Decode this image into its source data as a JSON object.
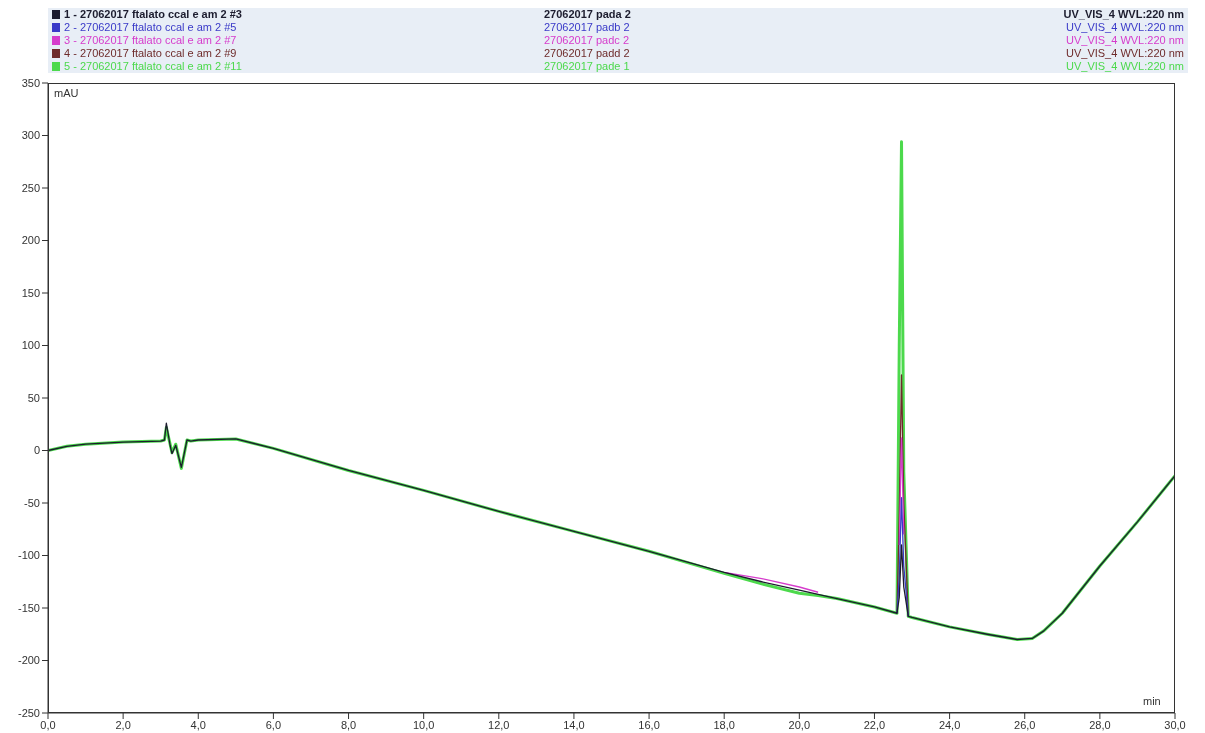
{
  "chart_data": {
    "type": "line",
    "xlabel": "min",
    "ylabel": "mAU",
    "x": [
      0,
      0.5,
      1,
      2,
      3,
      3.1,
      3.15,
      3.25,
      3.3,
      3.4,
      3.55,
      3.7,
      3.8,
      4,
      5,
      6,
      8,
      10,
      12,
      14,
      16,
      18,
      19,
      20,
      20.5,
      21,
      22,
      22.6,
      22.66,
      22.72,
      22.78,
      22.9,
      23,
      24,
      25,
      25.8,
      26.2,
      26.5,
      27,
      28,
      29,
      30
    ],
    "series": [
      {
        "name": "1 - 27062017 ftalato ccal e am 2 #3",
        "color": "#1c1c2e",
        "values": [
          0,
          4,
          6,
          8,
          9,
          10,
          26,
          5,
          -3,
          5,
          -16,
          10,
          9,
          10,
          11,
          2,
          -19,
          -38,
          -58,
          -77,
          -96,
          -116,
          -125,
          -133,
          -137,
          -141,
          -149,
          -155,
          -140,
          -90,
          -130,
          -158,
          -159,
          -168,
          -175,
          -180,
          -179,
          -172,
          -155,
          -110,
          -68,
          -24
        ]
      },
      {
        "name": "2 - 27062017 ftalato ccal e am 2 #5",
        "color": "#3a3ac8",
        "values": [
          null,
          null,
          null,
          null,
          null,
          null,
          null,
          null,
          null,
          null,
          null,
          null,
          null,
          null,
          null,
          null,
          null,
          null,
          null,
          null,
          null,
          null,
          null,
          null,
          null,
          null,
          null,
          -155,
          -120,
          -45,
          -110,
          -158,
          null,
          null,
          null,
          null,
          null,
          null,
          null,
          null,
          null,
          null
        ]
      },
      {
        "name": "3 - 27062017 ftalato ccal e am 2 #7",
        "color": "#d63ccc",
        "values": [
          null,
          null,
          null,
          null,
          null,
          null,
          null,
          null,
          null,
          null,
          null,
          null,
          null,
          null,
          null,
          null,
          null,
          null,
          null,
          null,
          null,
          -116,
          -122,
          -130,
          -135,
          null,
          null,
          null,
          -90,
          12,
          -80,
          null,
          null,
          null,
          null,
          null,
          null,
          null,
          null,
          null,
          null,
          null
        ]
      },
      {
        "name": "4 - 27062017 ftalato ccal e am 2 #9",
        "color": "#6e2b2b",
        "values": [
          null,
          null,
          null,
          null,
          null,
          null,
          null,
          null,
          null,
          null,
          null,
          null,
          null,
          null,
          null,
          null,
          null,
          null,
          null,
          null,
          null,
          null,
          null,
          null,
          null,
          null,
          null,
          -155,
          -60,
          72,
          -50,
          -158,
          null,
          null,
          null,
          null,
          null,
          null,
          null,
          null,
          null,
          null
        ]
      },
      {
        "name": "5 - 27062017 ftalato ccal e am 2 #11",
        "color": "#4cd94c",
        "values": [
          0,
          4,
          6,
          8,
          9,
          10,
          22,
          6,
          -2,
          6,
          -17,
          10,
          9,
          10,
          11,
          2,
          -19,
          -38,
          -58,
          -77,
          -96,
          -117,
          -127,
          -136,
          -138,
          -141,
          -149,
          -155,
          100,
          294,
          -20,
          -158,
          -159,
          -168,
          -175,
          -180,
          -179,
          -172,
          -155,
          -110,
          -68,
          -24
        ]
      }
    ],
    "annotations": [
      "27062017 pada 2",
      "UV_VIS_4 WVL:220 nm",
      "27062017 padb 2",
      "UV_VIS_4 WVL:220 nm",
      "27062017 padc 2",
      "UV_VIS_4 WVL:220 nm",
      "27062017 padd 2",
      "UV_VIS_4 WVL:220 nm",
      "27062017 pade 1",
      "UV_VIS_4 WVL:220 nm"
    ],
    "xlim": [
      0,
      30
    ],
    "xticks": [
      {
        "value": 0,
        "label": "0,0"
      },
      {
        "value": 2,
        "label": "2,0"
      },
      {
        "value": 4,
        "label": "4,0"
      },
      {
        "value": 6,
        "label": "6,0"
      },
      {
        "value": 8,
        "label": "8,0"
      },
      {
        "value": 10,
        "label": "10,0"
      },
      {
        "value": 12,
        "label": "12,0"
      },
      {
        "value": 14,
        "label": "14,0"
      },
      {
        "value": 16,
        "label": "16,0"
      },
      {
        "value": 18,
        "label": "18,0"
      },
      {
        "value": 20,
        "label": "20,0"
      },
      {
        "value": 22,
        "label": "22,0"
      },
      {
        "value": 24,
        "label": "24,0"
      },
      {
        "value": 26,
        "label": "26,0"
      },
      {
        "value": 28,
        "label": "28,0"
      },
      {
        "value": 30,
        "label": "30,0"
      }
    ],
    "ylim": [
      -250,
      350
    ],
    "yticks": [
      -250,
      -200,
      -150,
      -100,
      -50,
      0,
      50,
      100,
      150,
      200,
      250,
      300,
      350
    ],
    "legend": "top",
    "grid": false,
    "marker": "none",
    "line_style": "solid"
  }
}
